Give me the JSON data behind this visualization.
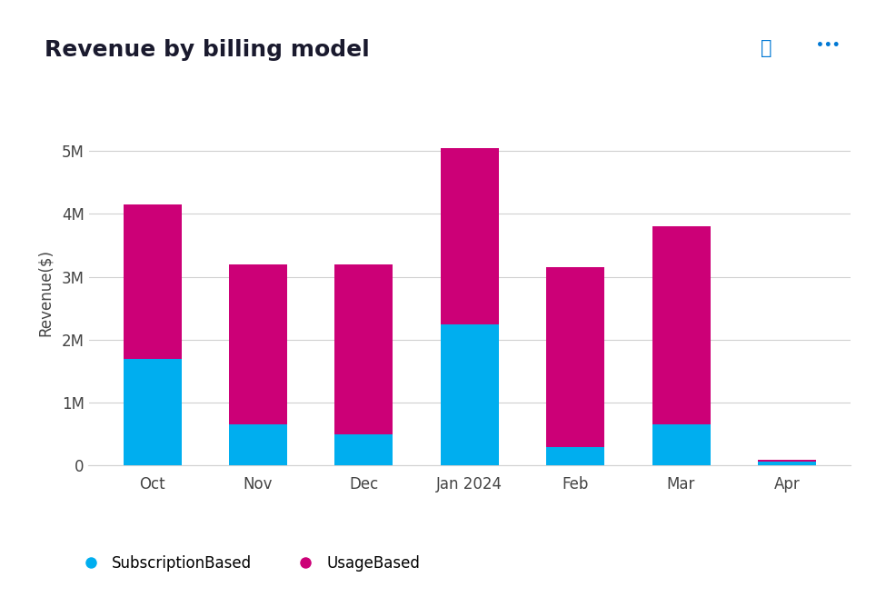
{
  "title": "Revenue by billing model",
  "ylabel": "Revenue($)",
  "categories": [
    "Oct",
    "Nov",
    "Dec",
    "Jan 2024",
    "Feb",
    "Mar",
    "Apr"
  ],
  "subscription_based": [
    1700000,
    650000,
    500000,
    2250000,
    300000,
    650000,
    70000
  ],
  "usage_based": [
    2450000,
    2550000,
    2700000,
    2800000,
    2850000,
    3150000,
    20000
  ],
  "color_subscription": "#00AEEF",
  "color_usage": "#CC0077",
  "background_color": "#FFFFFF",
  "ylim": [
    0,
    5500000
  ],
  "yticks": [
    0,
    1000000,
    2000000,
    3000000,
    4000000,
    5000000
  ],
  "ytick_labels": [
    "0",
    "1M",
    "2M",
    "3M",
    "4M",
    "5M"
  ],
  "legend_subscription": "SubscriptionBased",
  "legend_usage": "UsageBased",
  "title_fontsize": 18,
  "axis_label_fontsize": 12,
  "tick_fontsize": 12,
  "legend_fontsize": 12,
  "bar_width": 0.55,
  "grid_color": "#D0D0D0",
  "title_color": "#1a1a2e",
  "tick_color": "#444444",
  "icon_color": "#0078d4"
}
